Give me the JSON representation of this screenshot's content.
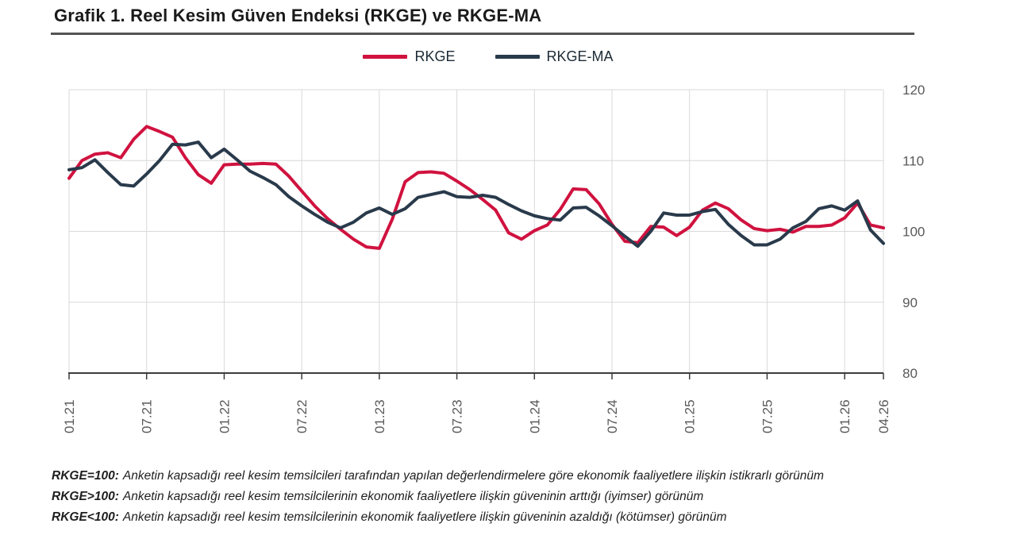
{
  "page": {
    "background": "#ffffff"
  },
  "header": {
    "title": "Grafik 1. Reel Kesim Güven Endeksi (RKGE) ve RKGE-MA",
    "underline_color": "#545454"
  },
  "legend": [
    {
      "label": "RKGE",
      "color": "#d0123f"
    },
    {
      "label": "RKGE-MA",
      "color": "#293a4b"
    }
  ],
  "axis_style": {
    "tick_label_color": "#595959",
    "axis_color": "#3c3c3c",
    "grid_color": "#d9d9d9"
  },
  "chart_data": {
    "type": "line",
    "title": "Grafik 1. Reel Kesim Güven Endeksi (RKGE) ve RKGE-MA",
    "x_unit": "month",
    "x_start": "01.21",
    "x_end": "04.26",
    "x_ticks": [
      {
        "m": 0,
        "label": "01.21"
      },
      {
        "m": 6,
        "label": "07.21"
      },
      {
        "m": 12,
        "label": "01.22"
      },
      {
        "m": 18,
        "label": "07.22"
      },
      {
        "m": 24,
        "label": "01.23"
      },
      {
        "m": 30,
        "label": "07.23"
      },
      {
        "m": 36,
        "label": "01.24"
      },
      {
        "m": 42,
        "label": "07.24"
      },
      {
        "m": 48,
        "label": "01.25"
      },
      {
        "m": 54,
        "label": "07.25"
      },
      {
        "m": 60,
        "label": "01.26"
      },
      {
        "m": 63,
        "label": "04.26"
      }
    ],
    "y_ticks": [
      80,
      90,
      100,
      110,
      120
    ],
    "ylim": [
      80,
      120
    ],
    "grid": true,
    "legend_position": "top-center",
    "series": [
      {
        "name": "RKGE",
        "color": "#d0123f",
        "values": [
          107.5,
          110.0,
          110.9,
          111.1,
          110.4,
          113.0,
          114.8,
          114.1,
          113.3,
          110.4,
          108.0,
          106.8,
          109.4,
          109.5,
          109.5,
          109.6,
          109.5,
          107.8,
          105.7,
          103.6,
          101.8,
          100.3,
          98.9,
          97.8,
          97.6,
          101.7,
          107.0,
          108.3,
          108.4,
          108.2,
          107.1,
          105.9,
          104.5,
          103.0,
          99.8,
          98.9,
          100.1,
          100.9,
          103.1,
          106.0,
          105.9,
          103.9,
          101.0,
          98.6,
          98.4,
          100.7,
          100.6,
          99.4,
          100.6,
          103.0,
          104.0,
          103.2,
          101.6,
          100.4,
          100.1,
          100.3,
          99.9,
          100.7,
          100.7,
          100.9,
          101.9,
          104.0,
          100.9,
          100.5
        ]
      },
      {
        "name": "RKGE-MA",
        "color": "#293a4b",
        "values": [
          108.7,
          109.0,
          110.1,
          108.3,
          106.6,
          106.4,
          108.1,
          110.0,
          112.3,
          112.2,
          112.6,
          110.4,
          111.6,
          110.1,
          108.5,
          107.6,
          106.6,
          104.9,
          103.6,
          102.4,
          101.3,
          100.5,
          101.3,
          102.6,
          103.3,
          102.4,
          103.2,
          104.8,
          105.2,
          105.6,
          104.9,
          104.8,
          105.1,
          104.8,
          103.8,
          102.9,
          102.2,
          101.8,
          101.6,
          103.3,
          103.4,
          102.2,
          100.8,
          99.3,
          97.9,
          100.0,
          102.6,
          102.3,
          102.3,
          102.8,
          103.1,
          101.0,
          99.4,
          98.1,
          98.1,
          98.9,
          100.5,
          101.4,
          103.2,
          103.6,
          103.0,
          104.3,
          100.2,
          98.3
        ]
      }
    ]
  },
  "footnotes": [
    {
      "lead": "RKGE=100:",
      "text": "Anketin kapsadığı reel kesim temsilcileri tarafından yapılan değerlendirmelere göre ekonomik faaliyetlere ilişkin istikrarlı görünüm"
    },
    {
      "lead": "RKGE>100:",
      "text": "Anketin kapsadığı reel kesim temsilcilerinin ekonomik faaliyetlere ilişkin güveninin arttığı (iyimser) görünüm"
    },
    {
      "lead": "RKGE<100:",
      "text": "Anketin kapsadığı reel kesim temsilcilerinin ekonomik faaliyetlere ilişkin güveninin azaldığı (kötümser) görünüm"
    }
  ]
}
